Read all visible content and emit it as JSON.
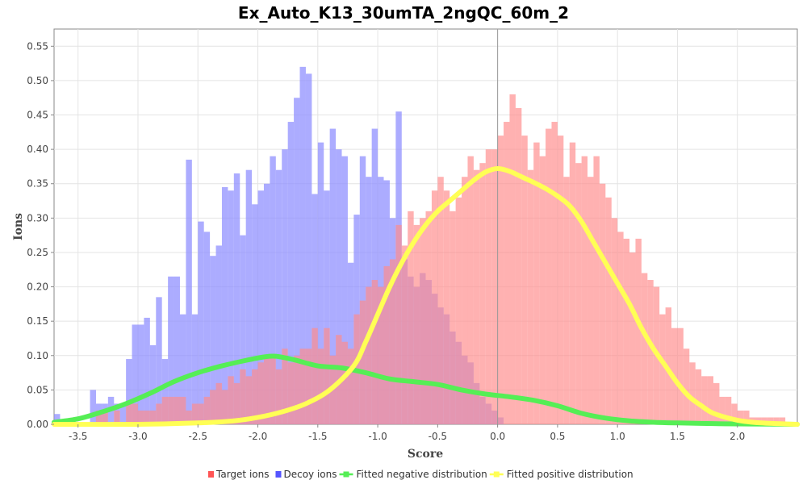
{
  "chart_data": {
    "type": "bar",
    "title": "Ex_Auto_K13_30umTA_2ngQC_60m_2",
    "xlabel": "Score",
    "ylabel": "Ions",
    "xlim": [
      -3.7,
      2.5
    ],
    "ylim": [
      0,
      0.575
    ],
    "xticks": [
      "-3.5",
      "-3.0",
      "-2.5",
      "-2.0",
      "-1.5",
      "-1.0",
      "-0.5",
      "0.0",
      "0.5",
      "1.0",
      "1.5",
      "2.0"
    ],
    "yticks": [
      "0.00",
      "0.05",
      "0.10",
      "0.15",
      "0.20",
      "0.25",
      "0.30",
      "0.35",
      "0.40",
      "0.45",
      "0.50",
      "0.55"
    ],
    "bin_width": 0.05,
    "grid": true,
    "legend_position": "bottom",
    "colors": {
      "target": "#ff8c8c",
      "decoy": "#8c8cff",
      "negative": "#55ee55",
      "positive": "#ffff55"
    },
    "series": [
      {
        "name": "Target ions",
        "type": "bar",
        "x_start": -3.7,
        "values": [
          0.0,
          0.0,
          0.0,
          0.0,
          0.0,
          0.0,
          0.0,
          0.02,
          0.02,
          0.0,
          0.02,
          0.0,
          0.03,
          0.03,
          0.02,
          0.02,
          0.02,
          0.03,
          0.04,
          0.04,
          0.04,
          0.04,
          0.02,
          0.03,
          0.03,
          0.04,
          0.05,
          0.06,
          0.05,
          0.07,
          0.06,
          0.08,
          0.07,
          0.08,
          0.09,
          0.1,
          0.1,
          0.08,
          0.11,
          0.09,
          0.1,
          0.11,
          0.11,
          0.14,
          0.11,
          0.14,
          0.1,
          0.13,
          0.12,
          0.11,
          0.16,
          0.18,
          0.2,
          0.21,
          0.2,
          0.23,
          0.24,
          0.29,
          0.26,
          0.31,
          0.29,
          0.3,
          0.31,
          0.34,
          0.36,
          0.34,
          0.31,
          0.33,
          0.36,
          0.39,
          0.37,
          0.38,
          0.4,
          0.4,
          0.42,
          0.44,
          0.48,
          0.46,
          0.42,
          0.37,
          0.41,
          0.39,
          0.43,
          0.44,
          0.42,
          0.36,
          0.41,
          0.38,
          0.39,
          0.36,
          0.39,
          0.35,
          0.33,
          0.3,
          0.28,
          0.27,
          0.25,
          0.27,
          0.22,
          0.21,
          0.2,
          0.16,
          0.17,
          0.14,
          0.14,
          0.11,
          0.09,
          0.08,
          0.07,
          0.07,
          0.06,
          0.04,
          0.04,
          0.03,
          0.02,
          0.02,
          0.01,
          0.01,
          0.01,
          0.01,
          0.01,
          0.01,
          0.0,
          0.0
        ]
      },
      {
        "name": "Decoy ions",
        "type": "bar",
        "x_start": -3.7,
        "values": [
          0.015,
          0.0,
          0.0,
          0.0,
          0.0,
          0.0,
          0.05,
          0.03,
          0.03,
          0.04,
          0.03,
          0.03,
          0.095,
          0.145,
          0.145,
          0.155,
          0.115,
          0.185,
          0.095,
          0.215,
          0.215,
          0.16,
          0.385,
          0.16,
          0.295,
          0.28,
          0.245,
          0.26,
          0.345,
          0.34,
          0.365,
          0.275,
          0.37,
          0.32,
          0.34,
          0.35,
          0.39,
          0.37,
          0.4,
          0.44,
          0.475,
          0.52,
          0.51,
          0.335,
          0.41,
          0.34,
          0.43,
          0.4,
          0.39,
          0.235,
          0.305,
          0.39,
          0.36,
          0.43,
          0.36,
          0.355,
          0.3,
          0.455,
          0.24,
          0.215,
          0.2,
          0.22,
          0.21,
          0.19,
          0.17,
          0.16,
          0.135,
          0.12,
          0.1,
          0.09,
          0.06,
          0.04,
          0.03,
          0.02,
          0.01,
          0.0,
          0.0,
          0.0,
          0.0,
          0.0,
          0.0,
          0.0,
          0.0,
          0.0,
          0.0,
          0.0,
          0.0,
          0.0,
          0.0,
          0.0,
          0.0,
          0.0,
          0.0,
          0.0,
          0.0,
          0.0,
          0.0,
          0.0,
          0.0,
          0.0,
          0.0,
          0.0,
          0.0,
          0.0,
          0.0,
          0.0,
          0.0,
          0.0,
          0.0,
          0.0,
          0.0,
          0.0,
          0.0,
          0.0,
          0.0,
          0.0,
          0.0,
          0.0,
          0.0,
          0.0,
          0.0,
          0.0,
          0.0,
          0.0
        ]
      },
      {
        "name": "Fitted negative distribution",
        "type": "line",
        "x": [
          -3.7,
          -3.5,
          -3.3,
          -3.1,
          -2.9,
          -2.7,
          -2.5,
          -2.3,
          -2.1,
          -1.95,
          -1.85,
          -1.7,
          -1.5,
          -1.3,
          -1.1,
          -0.9,
          -0.7,
          -0.5,
          -0.3,
          -0.1,
          0.1,
          0.3,
          0.5,
          0.7,
          0.9,
          1.1,
          1.3,
          1.5,
          1.8,
          2.1,
          2.5
        ],
        "y": [
          0.003,
          0.008,
          0.018,
          0.03,
          0.045,
          0.062,
          0.075,
          0.085,
          0.093,
          0.098,
          0.099,
          0.094,
          0.085,
          0.082,
          0.075,
          0.066,
          0.062,
          0.058,
          0.05,
          0.044,
          0.04,
          0.035,
          0.027,
          0.016,
          0.009,
          0.005,
          0.003,
          0.002,
          0.001,
          0.0005,
          0.0
        ]
      },
      {
        "name": "Fitted positive distribution",
        "type": "line",
        "x": [
          -3.7,
          -3.0,
          -2.5,
          -2.2,
          -2.0,
          -1.8,
          -1.6,
          -1.4,
          -1.2,
          -1.1,
          -1.0,
          -0.9,
          -0.8,
          -0.7,
          -0.6,
          -0.5,
          -0.4,
          -0.3,
          -0.2,
          -0.1,
          0.0,
          0.1,
          0.2,
          0.3,
          0.4,
          0.5,
          0.6,
          0.7,
          0.8,
          0.9,
          1.0,
          1.1,
          1.2,
          1.3,
          1.4,
          1.5,
          1.6,
          1.7,
          1.8,
          2.0,
          2.2,
          2.5
        ],
        "y": [
          0.0,
          0.0,
          0.002,
          0.005,
          0.01,
          0.018,
          0.03,
          0.05,
          0.085,
          0.12,
          0.16,
          0.2,
          0.235,
          0.265,
          0.29,
          0.31,
          0.325,
          0.34,
          0.355,
          0.367,
          0.372,
          0.368,
          0.36,
          0.352,
          0.343,
          0.332,
          0.318,
          0.295,
          0.265,
          0.235,
          0.205,
          0.175,
          0.14,
          0.11,
          0.085,
          0.06,
          0.04,
          0.027,
          0.016,
          0.006,
          0.002,
          0.0
        ]
      }
    ]
  }
}
